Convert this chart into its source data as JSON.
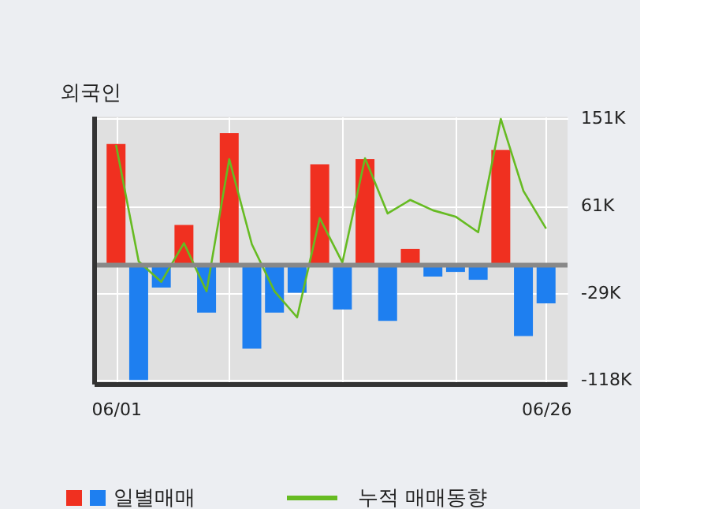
{
  "chart_data": {
    "type": "bar",
    "title": "외국인",
    "categories": [
      "06/01",
      null,
      null,
      null,
      null,
      null,
      null,
      null,
      null,
      null,
      null,
      null,
      null,
      null,
      null,
      null,
      null,
      null,
      null,
      "06/26"
    ],
    "series": [
      {
        "name": "일별매매",
        "values": [
          124.7,
          -118.3,
          -23.1,
          41.4,
          -48.9,
          136.0,
          -86.0,
          -48.9,
          -28.5,
          103.8,
          -45.7,
          109.2,
          -57.5,
          16.7,
          -11.8,
          -7.0,
          -15.1,
          118.8,
          -73.1,
          -39.3
        ],
        "colors": [
          "#f03020",
          "#1e7ff0",
          "#1e7ff0",
          "#f03020",
          "#1e7ff0",
          "#f03020",
          "#1e7ff0",
          "#1e7ff0",
          "#1e7ff0",
          "#f03020",
          "#1e7ff0",
          "#f03020",
          "#1e7ff0",
          "#f03020",
          "#1e7ff0",
          "#1e7ff0",
          "#1e7ff0",
          "#f03020",
          "#1e7ff0",
          "#1e7ff0"
        ]
      },
      {
        "name": "누적 매매동향",
        "type": "line",
        "color": "#66bb22",
        "values": [
          123.7,
          3.8,
          -17.2,
          22.6,
          -26.9,
          109.2,
          21.5,
          -26.9,
          -53.8,
          48.4,
          2.7,
          110.2,
          53.2,
          67.2,
          56.5,
          50.0,
          33.9,
          150.6,
          76.4,
          37.6
        ]
      }
    ],
    "ylim": [
      -123,
      153
    ],
    "yticks": [
      {
        "value": 151,
        "label": "151K"
      },
      {
        "value": 61,
        "label": "61K"
      },
      {
        "value": -29,
        "label": "-29K"
      },
      {
        "value": -118,
        "label": "-118K"
      }
    ],
    "grid": true,
    "legend": "bottom"
  }
}
